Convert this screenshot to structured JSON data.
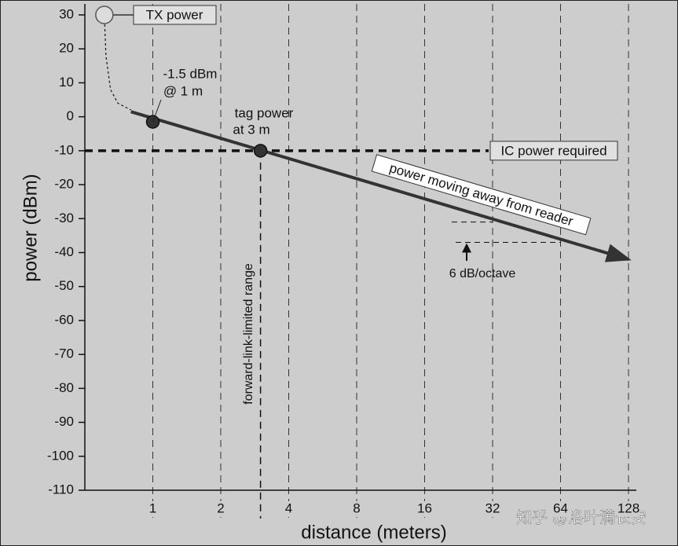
{
  "chart_data": {
    "type": "line",
    "xlabel": "distance (meters)",
    "ylabel": "power (dBm)",
    "xscale": "log2",
    "xlim": [
      0.5,
      128
    ],
    "ylim": [
      -110,
      30
    ],
    "xticks": [
      1,
      2,
      4,
      8,
      16,
      32,
      64,
      128
    ],
    "yticks": [
      30,
      20,
      10,
      0,
      -10,
      -20,
      -30,
      -40,
      -50,
      -60,
      -70,
      -80,
      -90,
      -100,
      -110
    ],
    "grid": true,
    "series": [
      {
        "name": "power moving away from reader",
        "color": "#333333",
        "x": [
          0.8,
          128
        ],
        "values": [
          1.5,
          -42
        ]
      }
    ],
    "near_field_curve": {
      "x": [
        0.61,
        0.62,
        0.65,
        0.7,
        0.8
      ],
      "values": [
        30,
        18,
        8,
        4,
        2
      ]
    },
    "points": {
      "x": [
        1,
        3
      ],
      "values": [
        -1.5,
        -10
      ],
      "color": "#333333"
    },
    "tx_power": {
      "label": "TX power",
      "x": 0.61,
      "value": 30
    },
    "ic_power": {
      "label": "IC power required",
      "value": -10
    },
    "range_line": {
      "label": "forward-link-limited range",
      "x": 3
    },
    "annotations": {
      "point1": [
        "-1.5 dBm",
        "@ 1 m"
      ],
      "point2": [
        "tag power",
        "at 3 m"
      ],
      "slope": "6 dB/octave",
      "slope_levels": [
        -31,
        -37
      ]
    },
    "watermark": "知乎 @洛叶满长安"
  }
}
